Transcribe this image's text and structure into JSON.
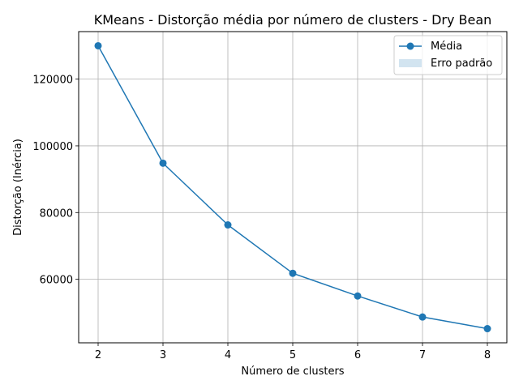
{
  "chart_data": {
    "type": "line",
    "title": "KMeans - Distorção média por número de clusters - Dry Bean",
    "xlabel": "Número de clusters",
    "ylabel": "Distorção (Inércia)",
    "x": [
      2,
      3,
      4,
      5,
      6,
      7,
      8
    ],
    "series": [
      {
        "name": "Média",
        "values": [
          130000,
          94800,
          76300,
          61800,
          55000,
          48700,
          45200
        ],
        "color": "#1f77b4",
        "marker": "circle"
      }
    ],
    "band": {
      "name": "Erro padrão",
      "color": "#1f77b4",
      "opacity": 0.2
    },
    "xticks": [
      2,
      3,
      4,
      5,
      6,
      7,
      8
    ],
    "yticks": [
      60000,
      80000,
      100000,
      120000
    ],
    "xlim": [
      1.7,
      8.3
    ],
    "ylim": [
      40960,
      134240
    ],
    "grid": true,
    "legend_position": "top-right"
  }
}
